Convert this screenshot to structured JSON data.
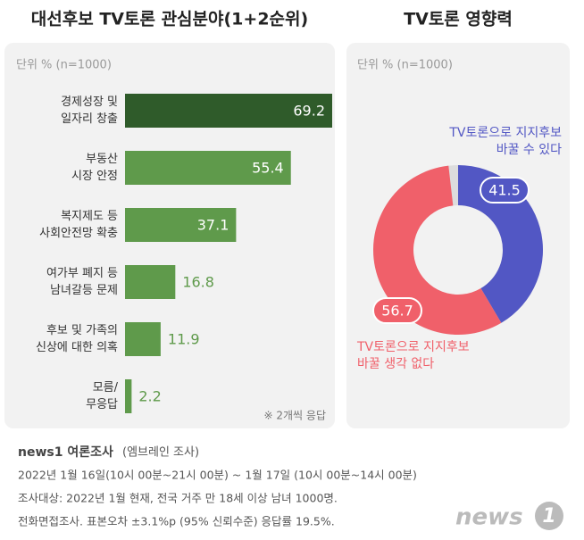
{
  "chart_data": [
    {
      "type": "hbar",
      "title": "대선후보 TV토론 관심분야(1+2순위)",
      "subtitle": "단위 % (n=1000)",
      "categories": [
        "경제성장 및\n일자리 창출",
        "부동산\n시장 안정",
        "복지제도 등\n사회안전망 확충",
        "여가부 폐지 등\n남녀갈등 문제",
        "후보 및 가족의\n신상에 대한 의혹",
        "모름/\n무응답"
      ],
      "values": [
        69.2,
        55.4,
        37.1,
        16.8,
        11.9,
        2.2
      ],
      "colors": [
        "#2f5b2a",
        "#5f9a4b",
        "#5f9a4b",
        "#5f9a4b",
        "#5f9a4b",
        "#5f9a4b"
      ],
      "note": "※ 2개씩 응답"
    },
    {
      "type": "donut",
      "title": "TV토론 영향력",
      "subtitle": "단위 % (n=1000)",
      "categories": [
        "TV토론으로 지지후보\n바꿀 수 있다",
        "TV토론으로 지지후보\n바꿀 생각 없다"
      ],
      "values": [
        41.5,
        56.7
      ],
      "colors": [
        "#5257c4",
        "#f0606a"
      ]
    }
  ],
  "footer": {
    "source_bold": "news1 여론조사",
    "source": "(엠브레인 조사)",
    "lines": [
      "2022년 1월 16일(10시 00분~21시 00분) ~ 1월 17일 (10시 00분~14시 00분)",
      "조사대상: 2022년 1월 현재, 전국 거주 만 18세 이상 남녀 1000명.",
      "전화면접조사. 표본오차 ±3.1%p (95% 신뢰수준) 응답률 19.5%."
    ],
    "logo_text": "news",
    "logo_number": "1"
  }
}
